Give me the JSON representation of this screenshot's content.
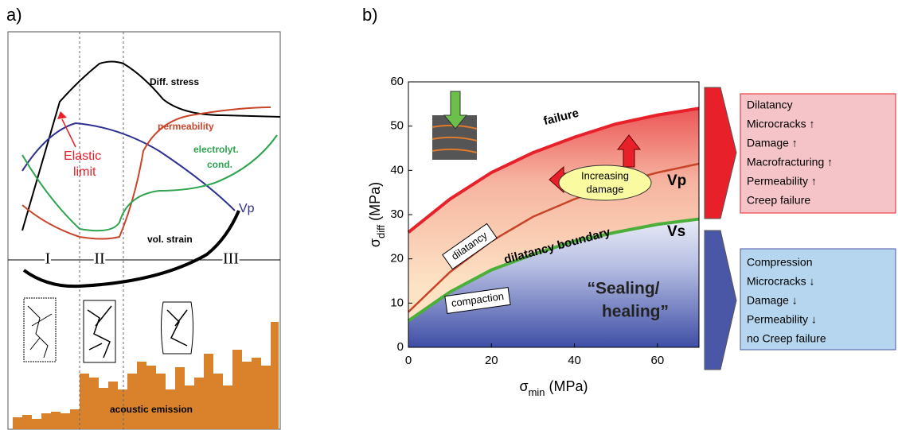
{
  "panel_a": {
    "label": "a)",
    "diff_stress": "Diff. stress",
    "permeability": "permeability",
    "electrolyt_cond": [
      "electrolyt.",
      "cond."
    ],
    "elastic_limit": [
      "Elastic",
      "limit"
    ],
    "vp": "Vp",
    "vol_strain": "vol. strain",
    "stages": [
      "I",
      "II",
      "III"
    ],
    "acoustic_emission": "acoustic emission"
  },
  "chart_data": {
    "type": "line",
    "panel_label": "b)",
    "x": [
      0,
      10,
      20,
      30,
      40,
      50,
      60,
      70
    ],
    "series": [
      {
        "name": "failure",
        "color": "#e8202a",
        "values": [
          26,
          33.5,
          39.5,
          44,
          47.5,
          50.5,
          52.5,
          54
        ]
      },
      {
        "name": "Vp",
        "color": "#c8452a",
        "values": [
          8,
          17,
          24,
          29.5,
          33.5,
          37,
          39.5,
          41.5
        ]
      },
      {
        "name": "Vs",
        "color": "#4caf3a",
        "values": [
          6,
          12.5,
          17.5,
          21,
          24,
          26,
          27.8,
          29
        ]
      }
    ],
    "xlim": [
      0,
      70
    ],
    "ylim": [
      0,
      60
    ],
    "xticks": [
      0,
      20,
      40,
      60
    ],
    "yticks": [
      0,
      10,
      20,
      30,
      40,
      50,
      60
    ],
    "xlabel": {
      "symbol": "σ",
      "sub": "min",
      "unit": "(MPa)"
    },
    "ylabel": {
      "symbol": "σ",
      "sub": "diff",
      "unit": "(MPa)"
    },
    "annotations": {
      "dilatancy_boundary": "dilatancy boundary",
      "dilatancy": "dilatancy",
      "compaction": "compaction",
      "sealing": [
        "“Sealing/",
        "healing”"
      ],
      "increasing_damage": [
        "Increasing",
        "damage"
      ]
    }
  },
  "boxes": [
    {
      "items": [
        "Dilatancy",
        "Microcracks ↑",
        "Damage ↑",
        "Macrofracturing ↑",
        "Permeability ↑",
        "Creep failure"
      ]
    },
    {
      "items": [
        "Compression",
        "Microcracks ↓",
        "Damage ↓",
        "Permeability ↓",
        "no Creep failure"
      ]
    }
  ]
}
